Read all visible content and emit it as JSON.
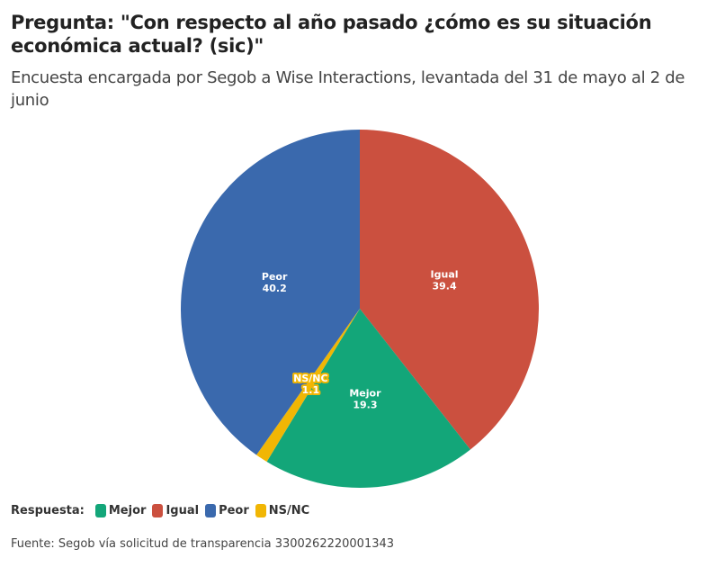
{
  "chart_data": {
    "type": "pie",
    "title": "Pregunta: \"Con respecto al año pasado ¿cómo es su situación económica actual? (sic)\"",
    "subtitle": "Encuesta encargada por Segob a Wise Interactions, levantada del 31 de mayo al 2 de junio",
    "legend_title": "Respuesta:",
    "legend_placement": "bottom-left",
    "slices": [
      {
        "name": "Igual",
        "value": 39.4,
        "value_label": "39.4",
        "color": "#cb503f"
      },
      {
        "name": "Mejor",
        "value": 19.3,
        "value_label": "19.3",
        "color": "#13a679"
      },
      {
        "name": "NS/NC",
        "value": 1.1,
        "value_label": "1.1",
        "color": "#f1b604"
      },
      {
        "name": "Peor",
        "value": 40.2,
        "value_label": "40.2",
        "color": "#3a69ad"
      }
    ],
    "legend_order": [
      "Mejor",
      "Igual",
      "Peor",
      "NS/NC"
    ],
    "source": "Fuente: Segob vía solicitud de transparencia 3300262220001343"
  }
}
